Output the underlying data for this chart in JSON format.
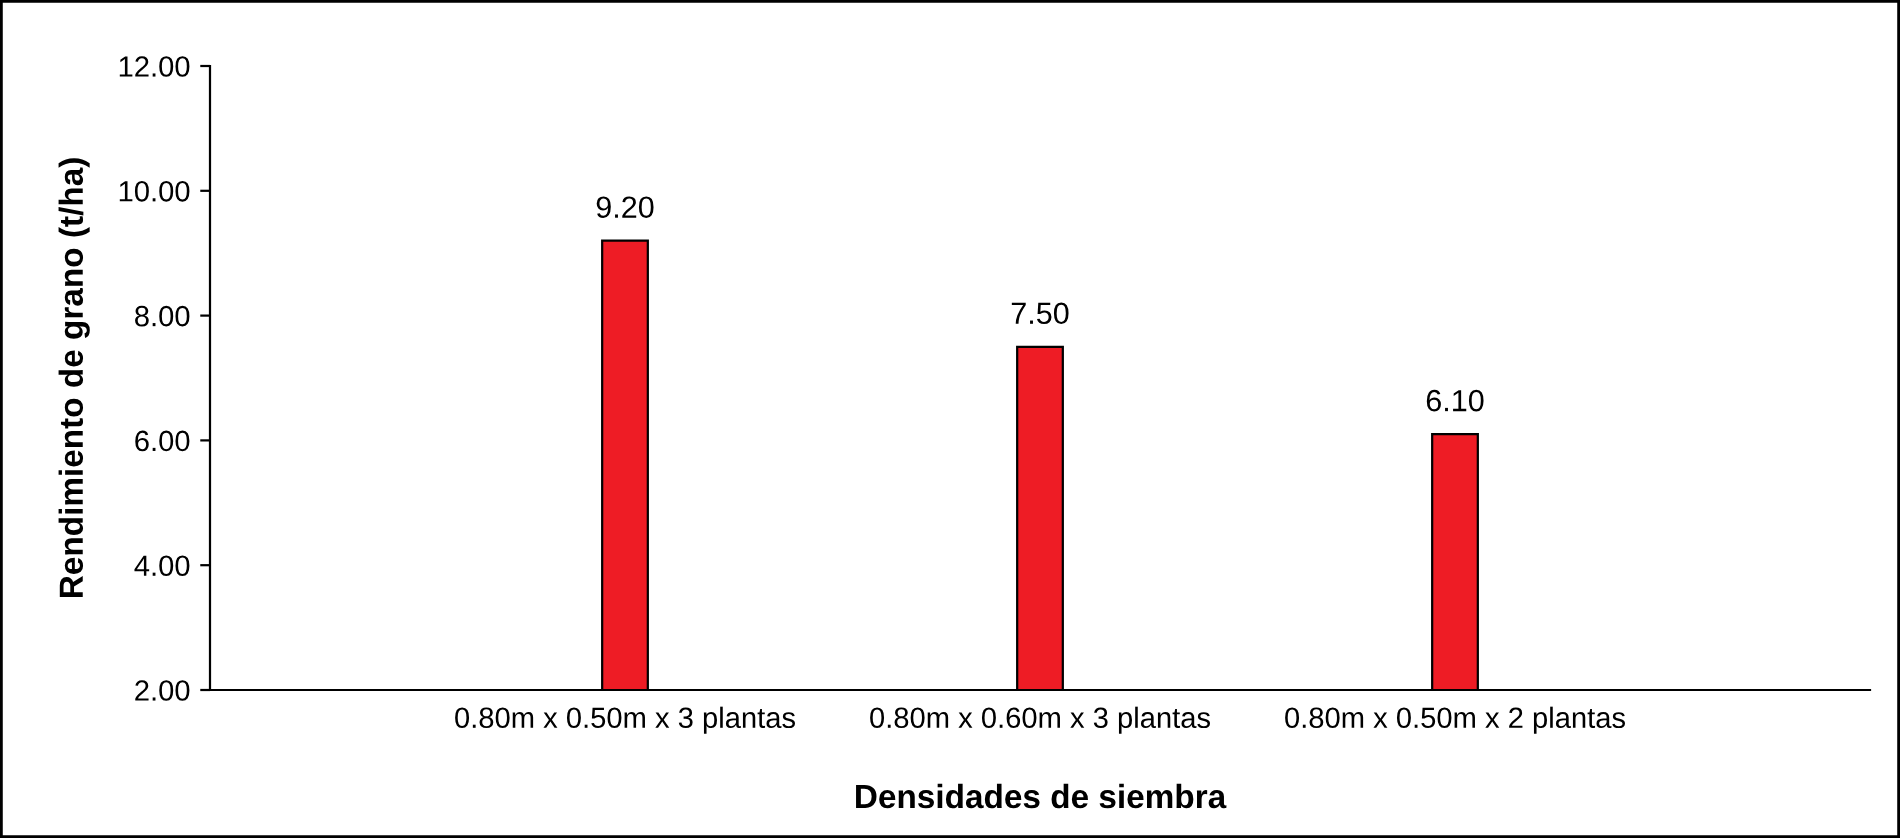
{
  "chart_data": {
    "type": "bar",
    "xlabel": "Densidades de siembra",
    "ylabel": "Rendimiento de grano (t/ha)",
    "categories": [
      "0.80m x 0.50m x 3 plantas",
      "0.80m x 0.60m x 3 plantas",
      "0.80m x 0.50m x 2 plantas"
    ],
    "values": [
      9.2,
      7.5,
      6.1
    ],
    "value_labels": [
      "9.20",
      "7.50",
      "6.10"
    ],
    "color": "#ee1c25",
    "ylim": [
      2,
      12
    ],
    "yticks": [
      {
        "value": 2,
        "label": "2.00"
      },
      {
        "value": 4,
        "label": "4.00"
      },
      {
        "value": 6,
        "label": "6.00"
      },
      {
        "value": 8,
        "label": "8.00"
      },
      {
        "value": 10,
        "label": "10.00"
      },
      {
        "value": 12,
        "label": "12.00"
      }
    ],
    "grid": false,
    "legend": false
  }
}
